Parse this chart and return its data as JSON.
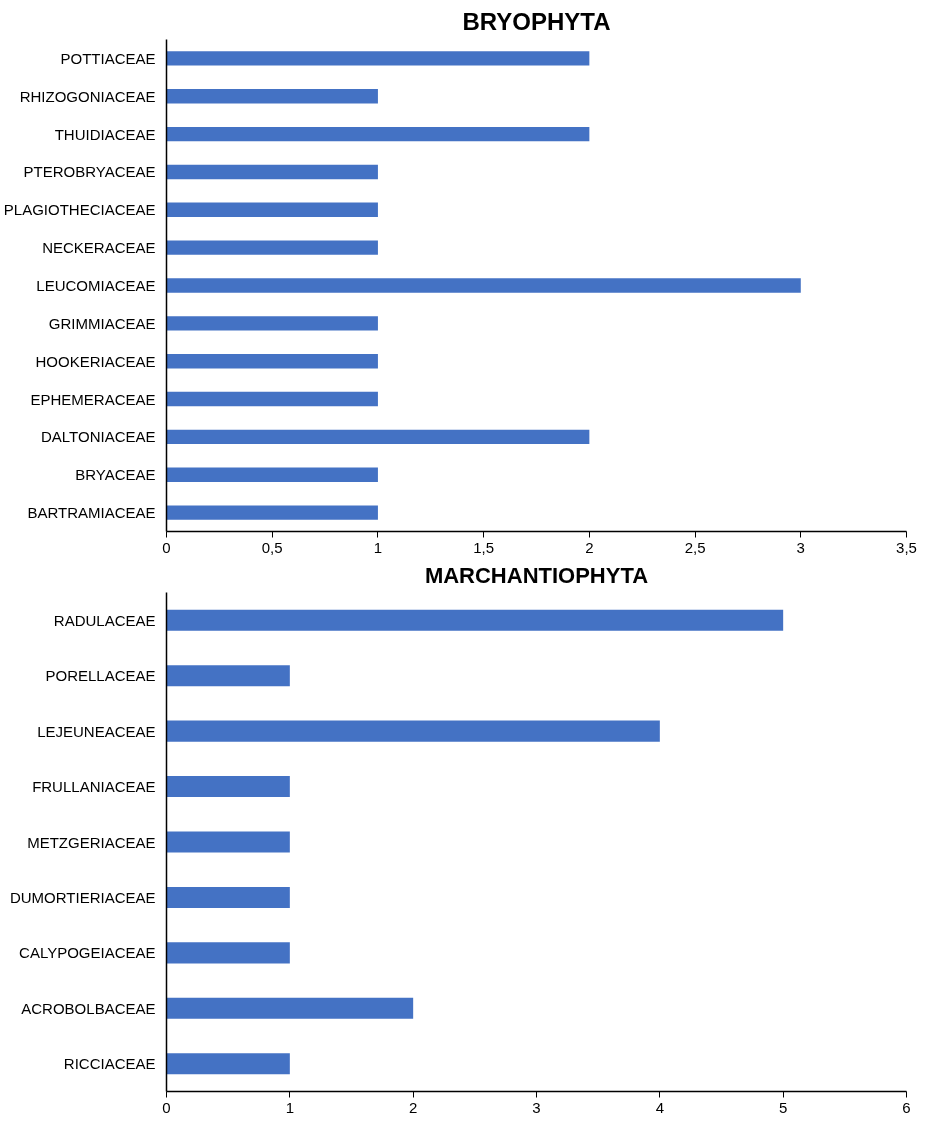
{
  "chart_data": [
    {
      "type": "bar",
      "orientation": "horizontal",
      "title": "BRYOPHYTA",
      "color": "#4472c4",
      "categories": [
        "POTTIACEAE",
        "RHIZOGONIACEAE",
        "THUIDIACEAE",
        "PTEROBRYACEAE",
        "PLAGIOTHECIACEAE",
        "NECKERACEAE",
        "LEUCOMIACEAE",
        "GRIMMIACEAE",
        "HOOKERIACEAE",
        "EPHEMERACEAE",
        "DALTONIACEAE",
        "BRYACEAE",
        "BARTRAMIACEAE"
      ],
      "values": [
        2,
        1,
        2,
        1,
        1,
        1,
        3,
        1,
        1,
        1,
        2,
        1,
        1
      ],
      "xlim": [
        0,
        3.5
      ],
      "xticks": [
        0,
        {
          "value": 0.5,
          "label": "0,5"
        },
        1,
        {
          "value": 1.5,
          "label": "1,5"
        },
        2,
        {
          "value": 2.5,
          "label": "2,5"
        },
        3,
        {
          "value": 3.5,
          "label": "3,5"
        }
      ]
    },
    {
      "type": "bar",
      "orientation": "horizontal",
      "title": "MARCHANTIOPHYTA",
      "color": "#4472c4",
      "categories": [
        "RADULACEAE",
        "PORELLACEAE",
        "LEJEUNEACEAE",
        "FRULLANIACEAE",
        "METZGERIACEAE",
        "DUMORTIERIACEAE",
        "CALYPOGEIACEAE",
        "ACROBOLBACEAE",
        "RICCIACEAE"
      ],
      "values": [
        5,
        1,
        4,
        1,
        1,
        1,
        1,
        2,
        1
      ],
      "xlim": [
        0,
        6
      ],
      "xticks": [
        0,
        1,
        2,
        3,
        4,
        5,
        6
      ]
    }
  ]
}
